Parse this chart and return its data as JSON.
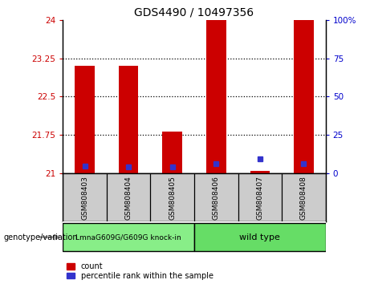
{
  "title": "GDS4490 / 10497356",
  "samples": [
    "GSM808403",
    "GSM808404",
    "GSM808405",
    "GSM808406",
    "GSM808407",
    "GSM808408"
  ],
  "bar_bottom": 21,
  "bar_tops": [
    23.1,
    23.1,
    21.82,
    24.0,
    21.04,
    24.0
  ],
  "percentile_values": [
    21.14,
    21.12,
    21.13,
    21.18,
    21.28,
    21.18
  ],
  "ylim_left": [
    21,
    24
  ],
  "ylim_right": [
    0,
    100
  ],
  "yticks_left": [
    21,
    21.75,
    22.5,
    23.25,
    24
  ],
  "yticks_right": [
    0,
    25,
    50,
    75,
    100
  ],
  "ytick_labels_left": [
    "21",
    "21.75",
    "22.5",
    "23.25",
    "24"
  ],
  "ytick_labels_right": [
    "0",
    "25",
    "50",
    "75",
    "100%"
  ],
  "hgrid_lines": [
    21.75,
    22.5,
    23.25
  ],
  "bar_color": "#cc0000",
  "blue_color": "#3333cc",
  "bar_width": 0.45,
  "knock_in_label": "LmnaG609G/G609G knock-in",
  "wild_type_label": "wild type",
  "genotype_label": "genotype/variation",
  "legend_count_label": "count",
  "legend_percentile_label": "percentile rank within the sample",
  "background_color": "#ffffff",
  "tick_color_left": "#cc0000",
  "tick_color_right": "#0000cc",
  "sample_box_color": "#cccccc",
  "knock_in_color": "#88ee88",
  "wild_type_color": "#66dd66",
  "title_fontsize": 10,
  "tick_fontsize": 7.5,
  "sample_fontsize": 6.5,
  "legend_fontsize": 7
}
